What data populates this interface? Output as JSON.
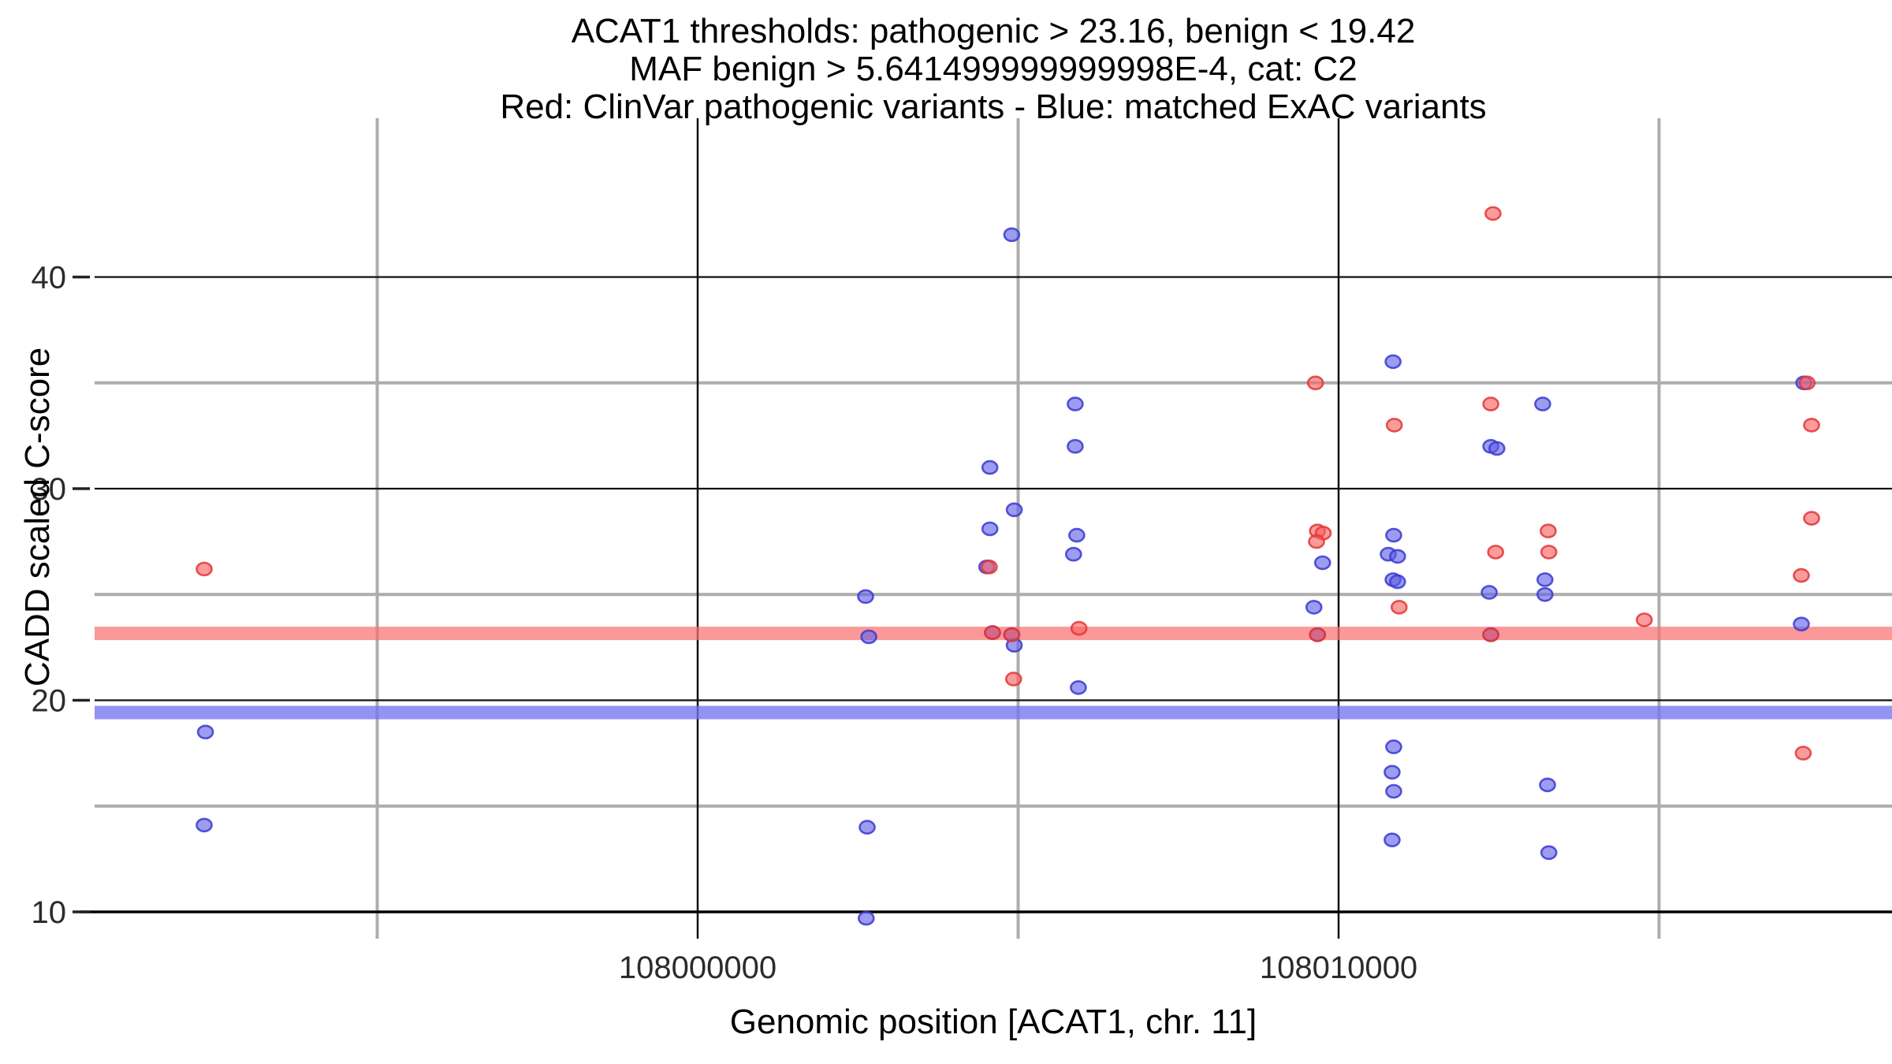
{
  "title": {
    "line1": "ACAT1 thresholds: pathogenic > 23.16, benign < 19.42",
    "line2": "MAF benign > 5.641499999999998E-4, cat: C2",
    "line3": "Red: ClinVar pathogenic variants - Blue: matched ExAC variants"
  },
  "axes": {
    "x": {
      "label": "Genomic position [ACAT1, chr. 11]",
      "tick_values": [
        108000000,
        108010000
      ],
      "tick_labels": [
        "108000000",
        "108010000"
      ],
      "minor_gridlines": [
        107995000,
        108005000,
        108015000
      ],
      "major_gridlines": [
        108000000,
        108010000
      ],
      "range": [
        107990500,
        108018650
      ]
    },
    "y": {
      "label": "CADD scaled C-score",
      "tick_values": [
        10,
        20,
        30,
        40
      ],
      "tick_labels": [
        "10",
        "20",
        "30",
        "40"
      ],
      "minor_gridlines": [
        15,
        25,
        35
      ],
      "major_gridlines": [
        20,
        30,
        40
      ],
      "range": [
        9.3,
        47.5
      ]
    }
  },
  "colors": {
    "red_fill": "#f96060",
    "red_stroke": "#e43535",
    "blue_fill": "#5f5fe8",
    "blue_stroke": "#3a3ad0",
    "red_band": "#f97070",
    "blue_band": "#7575ee",
    "minor_grid": "#adadad",
    "major_grid": "#111111",
    "axis_line": "#000000"
  },
  "chart_data": {
    "type": "scatter",
    "xlabel": "Genomic position [ACAT1, chr. 11]",
    "ylabel": "CADD scaled C-score",
    "grid": true,
    "legend_position": "none",
    "thresholds": {
      "pathogenic_line": 23.16,
      "benign_line": 19.42
    },
    "series": [
      {
        "name": "matched ExAC variants",
        "color_key": "blue",
        "points": [
          [
            107992320,
            18.5
          ],
          [
            107992300,
            14.1
          ],
          [
            108002620,
            24.9
          ],
          [
            108002670,
            23.0
          ],
          [
            108002645,
            14.0
          ],
          [
            108002630,
            9.7
          ],
          [
            108004560,
            31.0
          ],
          [
            108004560,
            28.1
          ],
          [
            108004510,
            26.3
          ],
          [
            108004600,
            23.2
          ],
          [
            108004900,
            42.0
          ],
          [
            108004940,
            29.0
          ],
          [
            108004900,
            23.1
          ],
          [
            108004940,
            22.6
          ],
          [
            108005890,
            34.0
          ],
          [
            108005890,
            32.0
          ],
          [
            108005915,
            27.8
          ],
          [
            108005865,
            26.9
          ],
          [
            108005940,
            20.6
          ],
          [
            108009750,
            26.5
          ],
          [
            108009615,
            24.4
          ],
          [
            108009670,
            23.1
          ],
          [
            108010850,
            36.0
          ],
          [
            108010860,
            27.8
          ],
          [
            108010775,
            26.9
          ],
          [
            108010920,
            26.8
          ],
          [
            108010850,
            25.7
          ],
          [
            108010920,
            25.6
          ],
          [
            108010860,
            17.8
          ],
          [
            108010835,
            16.6
          ],
          [
            108010860,
            15.7
          ],
          [
            108010835,
            13.4
          ],
          [
            108012375,
            32.0
          ],
          [
            108012470,
            31.9
          ],
          [
            108012350,
            25.1
          ],
          [
            108012375,
            23.1
          ],
          [
            108013185,
            34.0
          ],
          [
            108013220,
            25.7
          ],
          [
            108013220,
            25.0
          ],
          [
            108013260,
            16.0
          ],
          [
            108013280,
            12.8
          ],
          [
            108017260,
            35.0
          ],
          [
            108017220,
            23.6
          ]
        ]
      },
      {
        "name": "ClinVar pathogenic variants",
        "color_key": "red",
        "points": [
          [
            107992300,
            26.2
          ],
          [
            108004550,
            26.3
          ],
          [
            108004600,
            23.2
          ],
          [
            108004900,
            23.1
          ],
          [
            108004930,
            21.0
          ],
          [
            108005950,
            23.4
          ],
          [
            108009640,
            35.0
          ],
          [
            108009670,
            28.0
          ],
          [
            108009760,
            27.9
          ],
          [
            108009655,
            27.5
          ],
          [
            108009670,
            23.1
          ],
          [
            108010870,
            33.0
          ],
          [
            108010945,
            24.4
          ],
          [
            108012410,
            43.0
          ],
          [
            108012375,
            34.0
          ],
          [
            108012450,
            27.0
          ],
          [
            108012375,
            23.1
          ],
          [
            108013270,
            28.0
          ],
          [
            108013280,
            27.0
          ],
          [
            108014770,
            23.8
          ],
          [
            108017310,
            35.0
          ],
          [
            108017380,
            33.0
          ],
          [
            108017380,
            28.6
          ],
          [
            108017220,
            25.9
          ],
          [
            108017250,
            17.5
          ]
        ]
      }
    ]
  }
}
